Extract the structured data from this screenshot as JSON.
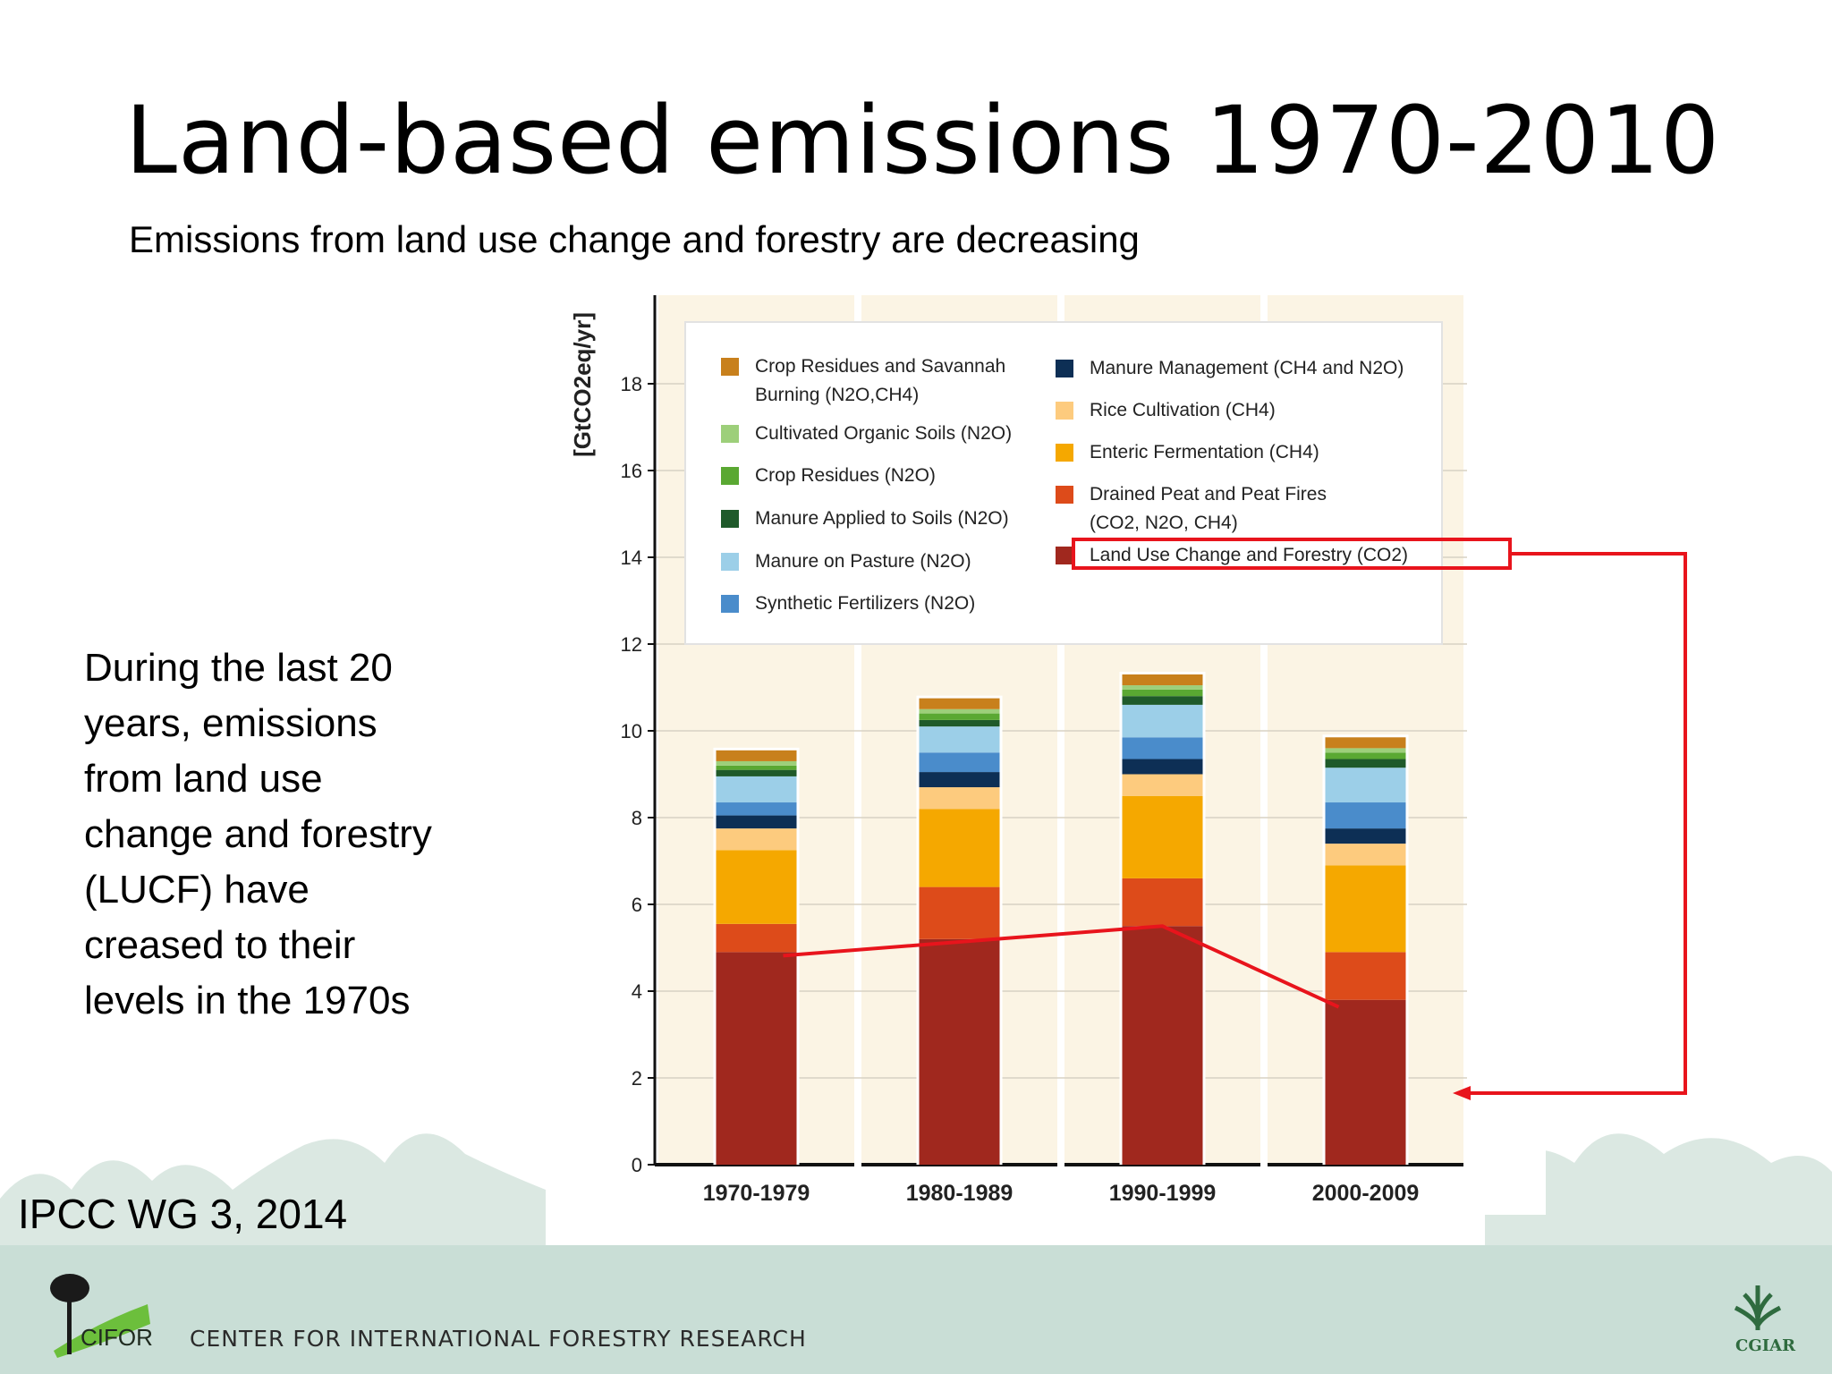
{
  "slide": {
    "title": "Land-based emissions 1970-2010",
    "subtitle": "Emissions from land use change and forestry are decreasing",
    "note": "During the last 20 years, emissions from land use change and forestry (LUCF) have creased to their levels in the 1970s",
    "source": "IPCC WG 3, 2014"
  },
  "footer": {
    "logo_word": "CIFOR",
    "org_name": "CENTER FOR INTERNATIONAL FORESTRY RESEARCH",
    "partner_logo_word": "CGIAR",
    "band_color": "#c9ded6"
  },
  "chart_data": {
    "type": "bar",
    "stacked": true,
    "title": "",
    "xlabel": "",
    "ylabel": "[GtCO2eq/yr]",
    "ylim": [
      0,
      20
    ],
    "yticks": [
      0,
      2,
      4,
      6,
      8,
      10,
      12,
      14,
      16,
      18
    ],
    "grid": true,
    "legend_position": "top",
    "categories": [
      "1970-1979",
      "1980-1989",
      "1990-1999",
      "2000-2009"
    ],
    "series": [
      {
        "name": "Land Use Change and Forestry (CO2)",
        "color": "#a0281e",
        "values": [
          4.9,
          5.2,
          5.5,
          3.8
        ]
      },
      {
        "name": "Drained Peat and Peat Fires (CO2, N2O, CH4)",
        "color": "#dd4b1a",
        "values": [
          0.65,
          1.2,
          1.1,
          1.1
        ]
      },
      {
        "name": "Enteric Fermentation (CH4)",
        "color": "#f5a800",
        "values": [
          1.7,
          1.8,
          1.9,
          2.0
        ]
      },
      {
        "name": "Rice Cultivation (CH4)",
        "color": "#fdcb7e",
        "values": [
          0.5,
          0.5,
          0.5,
          0.5
        ]
      },
      {
        "name": "Manure Management (CH4 and N2O)",
        "color": "#0d2f55",
        "values": [
          0.3,
          0.35,
          0.35,
          0.35
        ]
      },
      {
        "name": "Synthetic Fertilizers (N2O)",
        "color": "#4a8ccb",
        "values": [
          0.3,
          0.45,
          0.5,
          0.6
        ]
      },
      {
        "name": "Manure on Pasture (N2O)",
        "color": "#9ccfe8",
        "values": [
          0.6,
          0.6,
          0.75,
          0.8
        ]
      },
      {
        "name": "Manure Applied to Soils (N2O)",
        "color": "#1f5a2a",
        "values": [
          0.15,
          0.15,
          0.2,
          0.2
        ]
      },
      {
        "name": "Crop Residues (N2O)",
        "color": "#5aa832",
        "values": [
          0.1,
          0.15,
          0.15,
          0.15
        ]
      },
      {
        "name": "Cultivated Organic Soils (N2O)",
        "color": "#9dcf7a",
        "values": [
          0.1,
          0.1,
          0.1,
          0.1
        ]
      },
      {
        "name": "Crop Residues and Savannah Burning (N2O,CH4)",
        "color": "#c8801c",
        "values": [
          0.25,
          0.25,
          0.25,
          0.25
        ]
      }
    ],
    "legend": {
      "left": [
        {
          "label": "Crop Residues and Savannah",
          "label2": "Burning (N2O,CH4)",
          "color": "#c8801c"
        },
        {
          "label": "Cultivated Organic Soils (N2O)",
          "color": "#9dcf7a"
        },
        {
          "label": "Crop Residues (N2O)",
          "color": "#5aa832"
        },
        {
          "label": "Manure Applied to Soils (N2O)",
          "color": "#1f5a2a"
        },
        {
          "label": "Manure on Pasture (N2O)",
          "color": "#9ccfe8"
        },
        {
          "label": "Synthetic Fertilizers (N2O)",
          "color": "#4a8ccb"
        }
      ],
      "right": [
        {
          "label": "Manure Management (CH4 and N2O)",
          "color": "#0d2f55"
        },
        {
          "label": "Rice Cultivation (CH4)",
          "color": "#fdcb7e"
        },
        {
          "label": "Enteric Fermentation (CH4)",
          "color": "#f5a800"
        },
        {
          "label": "Drained Peat and Peat Fires",
          "label2": "(CO2, N2O, CH4)",
          "color": "#dd4b1a"
        },
        {
          "label": "Land Use Change and Forestry (CO2)",
          "color": "#a0281e",
          "highlighted": true
        }
      ]
    },
    "annotation_color": "#e8141c",
    "plot_background": "#fbf4e4"
  }
}
